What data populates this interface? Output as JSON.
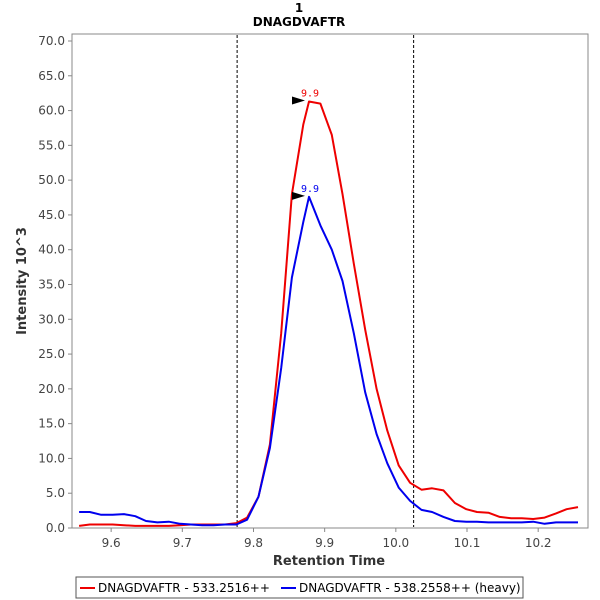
{
  "chart_data": {
    "type": "line",
    "title": "1",
    "subtitle": "DNAGDVAFTR",
    "xlabel": "Retention Time",
    "ylabel": "Intensity 10^3",
    "xlim": [
      9.545,
      10.27
    ],
    "ylim": [
      0,
      70
    ],
    "xticks": [
      9.6,
      9.7,
      9.8,
      9.9,
      10.0,
      10.1,
      10.2
    ],
    "xtick_labels": [
      "9.6",
      "9.7",
      "9.8",
      "9.9",
      "10.0",
      "10.1",
      "10.2"
    ],
    "yticks": [
      0,
      5,
      10,
      15,
      20,
      25,
      30,
      35,
      40,
      45,
      50,
      55,
      60,
      65,
      70
    ],
    "ytick_labels": [
      "0.0",
      "5.0",
      "10.0",
      "15.0",
      "20.0",
      "25.0",
      "30.0",
      "35.0",
      "40.0",
      "45.0",
      "50.0",
      "55.0",
      "60.0",
      "65.0",
      "70.0"
    ],
    "vlines": [
      9.777,
      10.025
    ],
    "grid": false,
    "legend_position": "bottom",
    "series": [
      {
        "name": "DNAGDVAFTR - 533.2516++",
        "color": "#ee0000",
        "peak": {
          "x": 9.878,
          "y": 61.3,
          "label": "9.9"
        },
        "x": [
          9.555,
          9.57,
          9.586,
          9.602,
          9.618,
          9.634,
          9.649,
          9.665,
          9.681,
          9.697,
          9.712,
          9.728,
          9.744,
          9.76,
          9.776,
          9.791,
          9.807,
          9.823,
          9.839,
          9.854,
          9.87,
          9.878,
          9.894,
          9.91,
          9.925,
          9.941,
          9.957,
          9.973,
          9.988,
          10.004,
          10.02,
          10.036,
          10.051,
          10.067,
          10.083,
          10.099,
          10.114,
          10.13,
          10.146,
          10.162,
          10.177,
          10.193,
          10.209,
          10.225,
          10.24,
          10.256
        ],
        "y": [
          0.3,
          0.5,
          0.5,
          0.5,
          0.4,
          0.3,
          0.3,
          0.3,
          0.3,
          0.4,
          0.5,
          0.5,
          0.5,
          0.5,
          0.7,
          1.5,
          4.5,
          12.0,
          28.0,
          48.0,
          58.0,
          61.3,
          61.0,
          56.5,
          48.0,
          38.0,
          28.5,
          20.0,
          14.0,
          9.0,
          6.5,
          5.5,
          5.7,
          5.4,
          3.6,
          2.7,
          2.3,
          2.2,
          1.6,
          1.4,
          1.4,
          1.3,
          1.5,
          2.1,
          2.7,
          3.0
        ]
      },
      {
        "name": "DNAGDVAFTR - 538.2558++ (heavy)",
        "color": "#0000ee",
        "peak": {
          "x": 9.878,
          "y": 47.6,
          "label": "9.9"
        },
        "x": [
          9.555,
          9.57,
          9.586,
          9.602,
          9.618,
          9.634,
          9.649,
          9.665,
          9.681,
          9.697,
          9.712,
          9.728,
          9.744,
          9.76,
          9.776,
          9.791,
          9.807,
          9.823,
          9.839,
          9.854,
          9.87,
          9.878,
          9.894,
          9.91,
          9.925,
          9.941,
          9.957,
          9.973,
          9.988,
          10.004,
          10.02,
          10.036,
          10.051,
          10.067,
          10.083,
          10.099,
          10.114,
          10.13,
          10.146,
          10.162,
          10.177,
          10.193,
          10.209,
          10.225,
          10.24,
          10.256
        ],
        "y": [
          2.3,
          2.3,
          1.9,
          1.9,
          2.0,
          1.7,
          1.0,
          0.8,
          0.9,
          0.6,
          0.5,
          0.4,
          0.4,
          0.5,
          0.5,
          1.2,
          4.5,
          11.5,
          23.0,
          36.0,
          44.0,
          47.6,
          43.5,
          40.0,
          35.5,
          28.0,
          19.5,
          13.5,
          9.3,
          5.8,
          3.9,
          2.6,
          2.3,
          1.6,
          1.0,
          0.9,
          0.9,
          0.8,
          0.8,
          0.8,
          0.8,
          0.9,
          0.6,
          0.8,
          0.8,
          0.8
        ]
      }
    ]
  }
}
